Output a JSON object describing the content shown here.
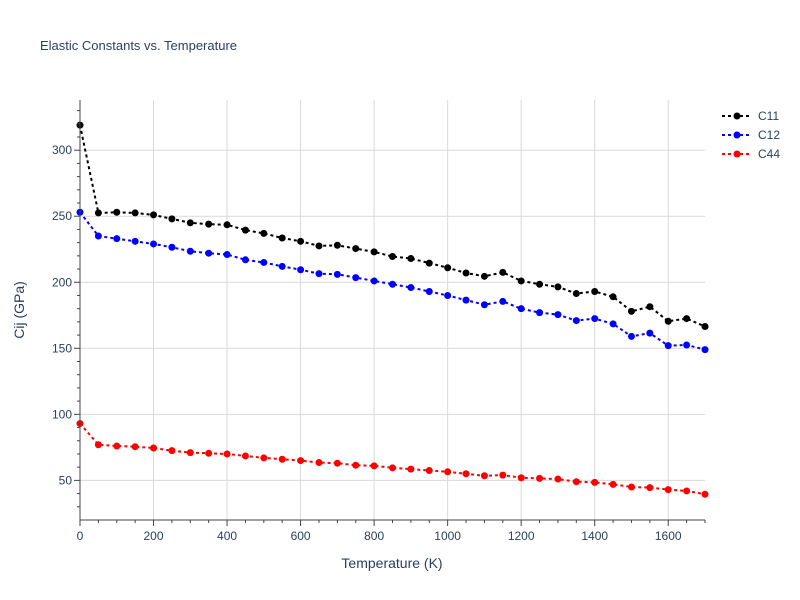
{
  "chart_data": {
    "type": "line",
    "title": "Elastic Constants vs. Temperature",
    "xlabel": "Temperature (K)",
    "ylabel": "Cij (GPa)",
    "xlim": [
      0,
      1700
    ],
    "ylim": [
      20,
      338
    ],
    "x_ticks": [
      0,
      200,
      400,
      600,
      800,
      1000,
      1200,
      1400,
      1600
    ],
    "y_ticks": [
      50,
      100,
      150,
      200,
      250,
      300
    ],
    "grid": true,
    "legend_position": "top-right",
    "x": [
      0,
      50,
      100,
      150,
      200,
      250,
      300,
      350,
      400,
      450,
      500,
      550,
      600,
      650,
      700,
      750,
      800,
      850,
      900,
      950,
      1000,
      1050,
      1100,
      1150,
      1200,
      1250,
      1300,
      1350,
      1400,
      1450,
      1500,
      1550,
      1600,
      1650,
      1700
    ],
    "series": [
      {
        "name": "C11",
        "color": "#000000",
        "values": [
          319,
          252.5,
          253,
          252.5,
          251,
          248,
          245,
          244,
          243.5,
          239.5,
          237,
          233.5,
          231,
          227.5,
          228,
          225.5,
          223,
          219.5,
          218,
          214.5,
          211,
          207,
          204.5,
          207.5,
          201,
          198.5,
          196.5,
          191.5,
          193,
          189,
          178,
          181.5,
          170.5,
          172.5,
          166.5
        ]
      },
      {
        "name": "C12",
        "color": "#0000ff",
        "values": [
          253,
          235,
          233,
          231,
          229,
          226.5,
          223.5,
          222,
          221,
          217,
          215,
          212,
          209.5,
          206.5,
          206,
          203.5,
          201,
          198.5,
          196,
          193,
          190,
          186.5,
          183,
          185.5,
          180,
          177,
          175.5,
          171,
          172.5,
          168.5,
          159,
          161.5,
          152,
          152.5,
          149
        ]
      },
      {
        "name": "C44",
        "color": "#ff0000",
        "values": [
          93,
          77,
          76,
          75.5,
          74.5,
          72.5,
          71,
          70.5,
          70,
          68.5,
          67,
          66,
          65,
          63.5,
          63,
          61.5,
          61,
          59.5,
          58.5,
          57.5,
          56.5,
          55,
          53.5,
          54,
          52,
          51.5,
          51,
          49,
          48.5,
          47,
          45,
          44.5,
          43,
          42,
          39.5
        ]
      }
    ]
  }
}
